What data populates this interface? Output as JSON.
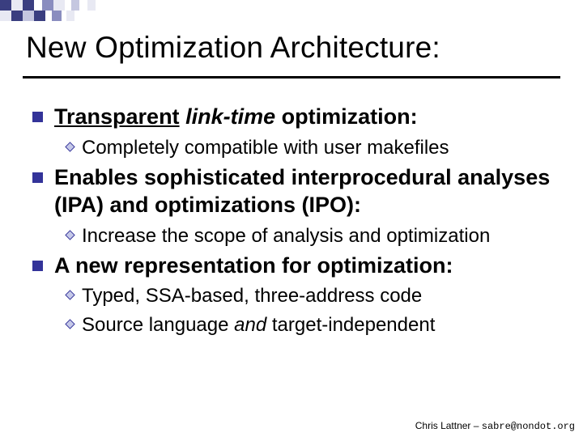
{
  "colors": {
    "bullet_square": "#333399",
    "diamond_fill": "#c5c8e8",
    "diamond_stroke": "#333399",
    "text": "#000000",
    "rule": "#000000",
    "deco_dark": "#3a3e80",
    "deco_mid": "#8a8dbf",
    "deco_light": "#c5c7e0",
    "deco_pale": "#e8e9f3"
  },
  "deco": {
    "rows": [
      [
        {
          "w": 14,
          "h": 13,
          "c": "dark"
        },
        {
          "w": 14,
          "h": 13,
          "c": "pale"
        },
        {
          "w": 14,
          "h": 13,
          "c": "dark"
        },
        {
          "w": 10,
          "h": 13,
          "c": "none"
        },
        {
          "w": 14,
          "h": 13,
          "c": "mid"
        },
        {
          "w": 14,
          "h": 13,
          "c": "pale"
        },
        {
          "w": 8,
          "h": 13,
          "c": "none"
        },
        {
          "w": 10,
          "h": 13,
          "c": "light"
        },
        {
          "w": 10,
          "h": 13,
          "c": "none"
        },
        {
          "w": 10,
          "h": 13,
          "c": "pale"
        }
      ],
      [
        {
          "w": 14,
          "h": 13,
          "c": "pale"
        },
        {
          "w": 14,
          "h": 13,
          "c": "dark"
        },
        {
          "w": 14,
          "h": 13,
          "c": "light"
        },
        {
          "w": 14,
          "h": 13,
          "c": "dark"
        },
        {
          "w": 8,
          "h": 13,
          "c": "none"
        },
        {
          "w": 12,
          "h": 13,
          "c": "mid"
        },
        {
          "w": 6,
          "h": 13,
          "c": "none"
        },
        {
          "w": 10,
          "h": 13,
          "c": "pale"
        }
      ]
    ]
  },
  "title": "New Optimization Architecture:",
  "title_fontsize": 37,
  "bullets": [
    {
      "segments": [
        {
          "text": "Transparent",
          "style": "underline"
        },
        {
          "text": " "
        },
        {
          "text": "link-time",
          "style": "italic"
        },
        {
          "text": " optimization:"
        }
      ],
      "subs": [
        {
          "text": "Completely compatible with user makefiles"
        }
      ]
    },
    {
      "segments": [
        {
          "text": "Enables sophisticated interprocedural analyses (IPA) and optimizations (IPO):"
        }
      ],
      "subs": [
        {
          "text": "Increase the scope of analysis and optimization"
        }
      ]
    },
    {
      "segments": [
        {
          "text": "A new representation for optimization:"
        }
      ],
      "subs": [
        {
          "text": "Typed, SSA-based, three-address code"
        },
        {
          "segments": [
            {
              "text": "Source language "
            },
            {
              "text": "and",
              "style": "italic"
            },
            {
              "text": " target-independent"
            }
          ]
        }
      ]
    }
  ],
  "footer": {
    "author": "Chris Lattner – ",
    "email": "sabre@nondot.org"
  },
  "l1_fontsize": 27,
  "l2_fontsize": 24
}
